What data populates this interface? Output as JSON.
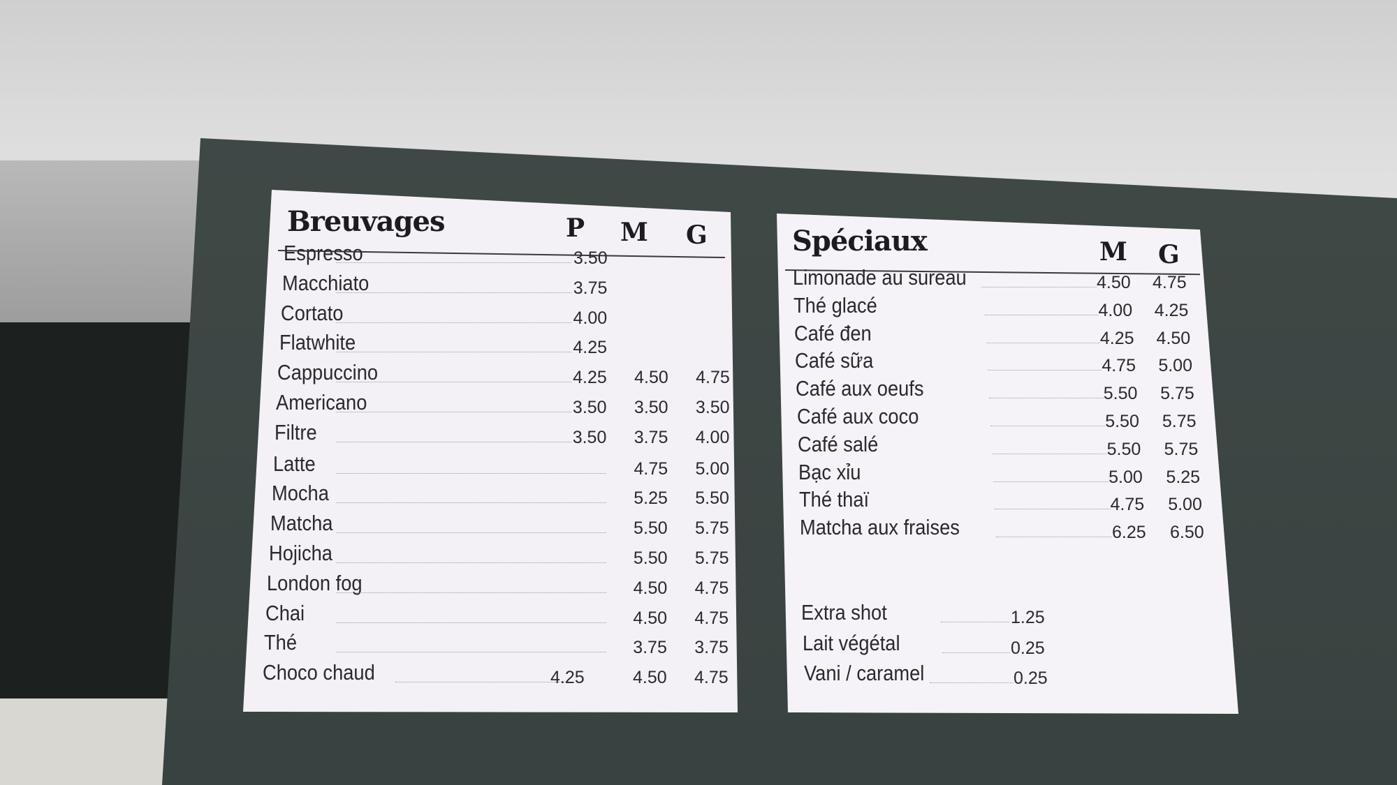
{
  "breuvages": {
    "title": "Breuvages",
    "columns": [
      "P",
      "M",
      "G"
    ],
    "items": [
      {
        "name": "Espresso",
        "P": "3.50",
        "M": "",
        "G": ""
      },
      {
        "name": "Macchiato",
        "P": "3.75",
        "M": "",
        "G": ""
      },
      {
        "name": "Cortato",
        "P": "4.00",
        "M": "",
        "G": ""
      },
      {
        "name": "Flatwhite",
        "P": "4.25",
        "M": "",
        "G": ""
      },
      {
        "name": "Cappuccino",
        "P": "4.25",
        "M": "4.50",
        "G": "4.75"
      },
      {
        "name": "Americano",
        "P": "3.50",
        "M": "3.50",
        "G": "3.50"
      },
      {
        "name": "Filtre",
        "P": "3.50",
        "M": "3.75",
        "G": "4.00"
      },
      {
        "name": "Latte",
        "P": "",
        "M": "4.75",
        "G": "5.00"
      },
      {
        "name": "Mocha",
        "P": "",
        "M": "5.25",
        "G": "5.50"
      },
      {
        "name": "Matcha",
        "P": "",
        "M": "5.50",
        "G": "5.75"
      },
      {
        "name": "Hojicha",
        "P": "",
        "M": "5.50",
        "G": "5.75"
      },
      {
        "name": "London fog",
        "P": "",
        "M": "4.50",
        "G": "4.75"
      },
      {
        "name": "Chai",
        "P": "",
        "M": "4.50",
        "G": "4.75"
      },
      {
        "name": "Thé",
        "P": "",
        "M": "3.75",
        "G": "3.75"
      },
      {
        "name": "Choco chaud",
        "P": "4.25",
        "M": "4.50",
        "G": "4.75"
      }
    ]
  },
  "speciaux": {
    "title": "Spéciaux",
    "columns": [
      "M",
      "G"
    ],
    "items": [
      {
        "name": "Limonade au sureau",
        "M": "4.50",
        "G": "4.75"
      },
      {
        "name": "Thé glacé",
        "M": "4.00",
        "G": "4.25"
      },
      {
        "name": "Café đen",
        "M": "4.25",
        "G": "4.50"
      },
      {
        "name": "Café sữa",
        "M": "4.75",
        "G": "5.00"
      },
      {
        "name": "Café aux oeufs",
        "M": "5.50",
        "G": "5.75"
      },
      {
        "name": "Café aux coco",
        "M": "5.50",
        "G": "5.75"
      },
      {
        "name": "Café salé",
        "M": "5.50",
        "G": "5.75"
      },
      {
        "name": "Bạc xỉu",
        "M": "5.00",
        "G": "5.25"
      },
      {
        "name": "Thé thaï",
        "M": "4.75",
        "G": "5.00"
      },
      {
        "name": "Matcha aux fraises",
        "M": "6.25",
        "G": "6.50"
      }
    ],
    "extras": [
      {
        "name": "Extra shot",
        "price": "1.25"
      },
      {
        "name": "Lait végétal",
        "price": "0.25"
      },
      {
        "name": "Vani / caramel",
        "price": "0.25"
      }
    ]
  },
  "colors": {
    "board": "#3d4643",
    "paper": "#f3f1f6",
    "ink": "#2a2830",
    "wall": "#d8d8d8"
  }
}
